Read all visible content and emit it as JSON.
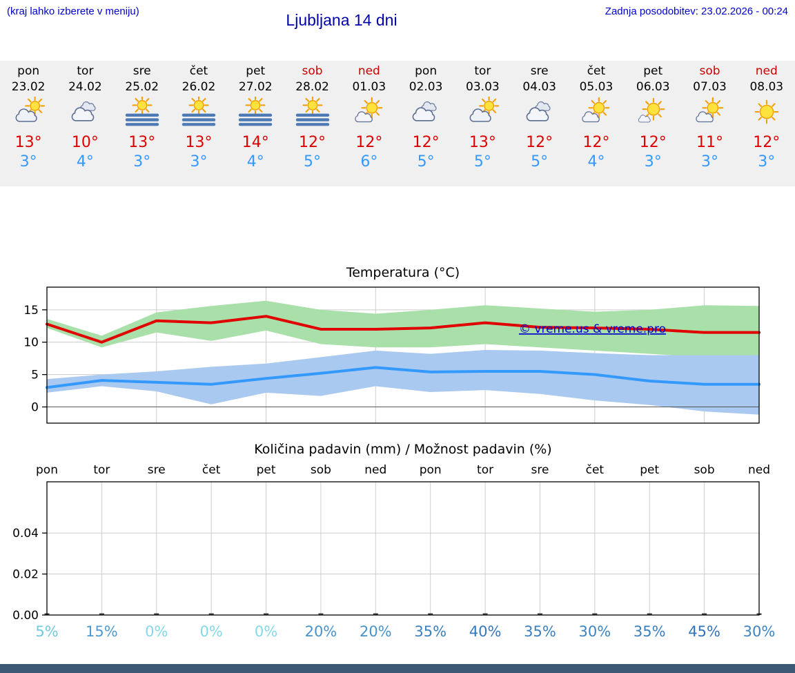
{
  "header": {
    "menu_note": "(kraj lahko izberete v meniju)",
    "title": "Ljubljana 14 dni",
    "last_update": "Zadnja posodobitev: 23.02.2026 - 00:24"
  },
  "colors": {
    "header_blue": "#0000cc",
    "title_blue": "#0000aa",
    "high_red": "#dd0000",
    "low_blue": "#3399ff",
    "weekend_red": "#cc0000",
    "strip_bg": "#f0f0f0",
    "footer_bar": "#3d5875",
    "watermark": "#0000cc",
    "gridline": "#cccccc"
  },
  "forecast": {
    "days": [
      {
        "day": "pon",
        "date": "23.02",
        "weekend": false,
        "icon": "partly-cloudy",
        "high": "13°",
        "low": "3°"
      },
      {
        "day": "tor",
        "date": "24.02",
        "weekend": false,
        "icon": "cloudy",
        "high": "10°",
        "low": "4°"
      },
      {
        "day": "sre",
        "date": "25.02",
        "weekend": false,
        "icon": "sun-fog",
        "high": "13°",
        "low": "3°"
      },
      {
        "day": "čet",
        "date": "26.02",
        "weekend": false,
        "icon": "sun-fog",
        "high": "13°",
        "low": "3°"
      },
      {
        "day": "pet",
        "date": "27.02",
        "weekend": false,
        "icon": "sun-fog",
        "high": "14°",
        "low": "4°"
      },
      {
        "day": "sob",
        "date": "28.02",
        "weekend": true,
        "icon": "sun-fog",
        "high": "12°",
        "low": "5°"
      },
      {
        "day": "ned",
        "date": "01.03",
        "weekend": true,
        "icon": "partly-sunny",
        "high": "12°",
        "low": "6°"
      },
      {
        "day": "pon",
        "date": "02.03",
        "weekend": false,
        "icon": "cloudy",
        "high": "12°",
        "low": "5°"
      },
      {
        "day": "tor",
        "date": "03.03",
        "weekend": false,
        "icon": "partly-cloudy",
        "high": "13°",
        "low": "5°"
      },
      {
        "day": "sre",
        "date": "04.03",
        "weekend": false,
        "icon": "cloudy",
        "high": "12°",
        "low": "5°"
      },
      {
        "day": "čet",
        "date": "05.03",
        "weekend": false,
        "icon": "partly-sunny",
        "high": "12°",
        "low": "4°"
      },
      {
        "day": "pet",
        "date": "06.03",
        "weekend": false,
        "icon": "mostly-sunny",
        "high": "12°",
        "low": "3°"
      },
      {
        "day": "sob",
        "date": "07.03",
        "weekend": true,
        "icon": "partly-sunny",
        "high": "11°",
        "low": "3°"
      },
      {
        "day": "ned",
        "date": "08.03",
        "weekend": true,
        "icon": "sunny",
        "high": "12°",
        "low": "3°"
      }
    ]
  },
  "chart_data": [
    {
      "type": "line",
      "title": "Temperatura (°C)",
      "categories": [
        "pon",
        "tor",
        "sre",
        "čet",
        "pet",
        "sob",
        "ned",
        "pon",
        "tor",
        "sre",
        "čet",
        "pet",
        "sob",
        "ned"
      ],
      "yticks": [
        0,
        5,
        10,
        15
      ],
      "ylim": [
        -2.5,
        18.5
      ],
      "grid": true,
      "watermark": "© vreme.us & vreme.pro",
      "series": [
        {
          "name": "max",
          "color": "#e00000",
          "values": [
            12.8,
            10,
            13.3,
            13,
            14,
            12,
            12,
            12.2,
            13,
            12.3,
            12.2,
            12,
            11.5,
            11.5
          ],
          "band_upper": [
            13.6,
            11,
            14.6,
            15.6,
            16.4,
            15,
            14.4,
            15,
            15.7,
            15.2,
            14.7,
            15,
            15.7,
            15.6
          ],
          "band_lower": [
            12.2,
            9.2,
            11.5,
            10.2,
            11.8,
            9.7,
            9.2,
            9.2,
            9.7,
            9.2,
            8.7,
            8.2,
            7.7,
            7.5
          ],
          "band_color": "#a9dfa9"
        },
        {
          "name": "min",
          "color": "#3399ff",
          "values": [
            3,
            4.1,
            3.8,
            3.5,
            4.4,
            5.2,
            6.1,
            5.4,
            5.5,
            5.5,
            5,
            4,
            3.5,
            3.5
          ],
          "band_upper": [
            4.3,
            5,
            5.5,
            6.2,
            6.7,
            7.7,
            8.7,
            8.2,
            8.8,
            8.7,
            8.3,
            8,
            8,
            8
          ],
          "band_lower": [
            2.2,
            3.2,
            2.4,
            0.4,
            2.2,
            1.7,
            3.2,
            2.3,
            2.6,
            2,
            1,
            0.3,
            -0.7,
            -1.2
          ],
          "band_color": "#aac9f0"
        }
      ]
    },
    {
      "type": "bar",
      "title": "Količina padavin (mm) / Možnost padavin (%)",
      "categories": [
        "pon",
        "tor",
        "sre",
        "čet",
        "pet",
        "sob",
        "ned",
        "pon",
        "tor",
        "sre",
        "čet",
        "pet",
        "sob",
        "ned"
      ],
      "yticks": [
        "0.00",
        "0.02",
        "0.04"
      ],
      "ylim": [
        0,
        0.065
      ],
      "grid": true,
      "values": [
        0,
        0,
        0,
        0,
        0,
        0,
        0,
        0,
        0,
        0,
        0,
        0,
        0,
        0
      ],
      "probabilities": [
        {
          "value": 5,
          "label": "5%",
          "color": "#6fcade"
        },
        {
          "value": 15,
          "label": "15%",
          "color": "#4e9ad0"
        },
        {
          "value": 0,
          "label": "0%",
          "color": "#85d8e6"
        },
        {
          "value": 0,
          "label": "0%",
          "color": "#85d8e6"
        },
        {
          "value": 0,
          "label": "0%",
          "color": "#85d8e6"
        },
        {
          "value": 20,
          "label": "20%",
          "color": "#4892ca"
        },
        {
          "value": 20,
          "label": "20%",
          "color": "#4892ca"
        },
        {
          "value": 35,
          "label": "35%",
          "color": "#3a7ec0"
        },
        {
          "value": 40,
          "label": "40%",
          "color": "#3578bc"
        },
        {
          "value": 35,
          "label": "35%",
          "color": "#3a7ec0"
        },
        {
          "value": 30,
          "label": "30%",
          "color": "#3e84c2"
        },
        {
          "value": 35,
          "label": "35%",
          "color": "#3a7ec0"
        },
        {
          "value": 45,
          "label": "45%",
          "color": "#3172b8"
        },
        {
          "value": 30,
          "label": "30%",
          "color": "#3e84c2"
        }
      ]
    }
  ]
}
